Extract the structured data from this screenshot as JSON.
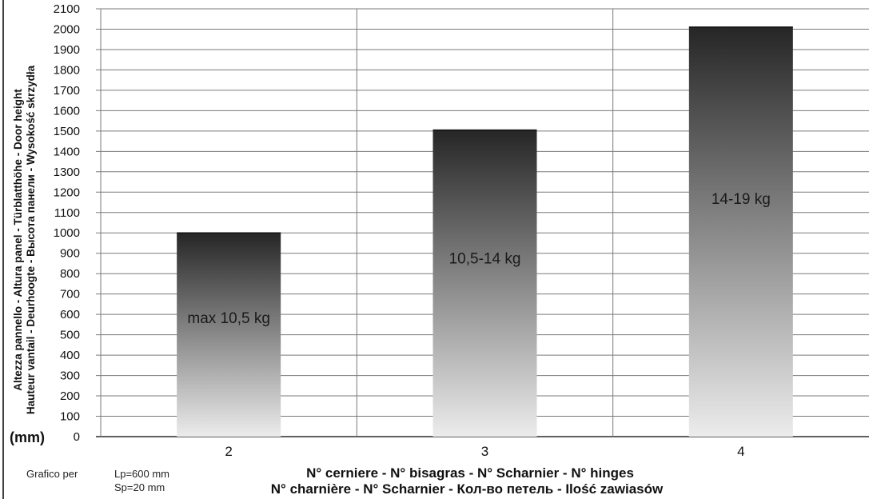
{
  "chart_data": {
    "type": "bar",
    "categories": [
      "2",
      "3",
      "4"
    ],
    "values": [
      1000,
      1505,
      2010
    ],
    "bar_labels": [
      "max 10,5 kg",
      "10,5-14 kg",
      "14-19 kg"
    ],
    "ylim": [
      0,
      2100
    ],
    "yticks": [
      0,
      100,
      200,
      300,
      400,
      500,
      600,
      700,
      800,
      900,
      1000,
      1100,
      1200,
      1300,
      1400,
      1500,
      1600,
      1700,
      1800,
      1900,
      2000,
      2100
    ],
    "grid": true,
    "ylabel_lines": [
      "Altezza pannello - Altura panel - Türblatthöhe - Door height",
      "Hauteur vantail - Deurhoogte - Высота панели - Wysokość skrzydła"
    ],
    "unit": "(mm)",
    "xlabel_lines": [
      "N° cerniere - N° bisagras - N° Scharnier - N° hinges",
      "N° charnière - N° Scharnier - Кол-во петель - Ilość zawiasów"
    ],
    "colors": {
      "bar_top": "#262626",
      "bar_bottom": "#ececec",
      "grid": "#7a7a7a",
      "axis": "#000000"
    }
  },
  "footnote": {
    "prefix": "Grafico per",
    "line1": "Lp=600 mm",
    "line2": "Sp=20 mm"
  }
}
